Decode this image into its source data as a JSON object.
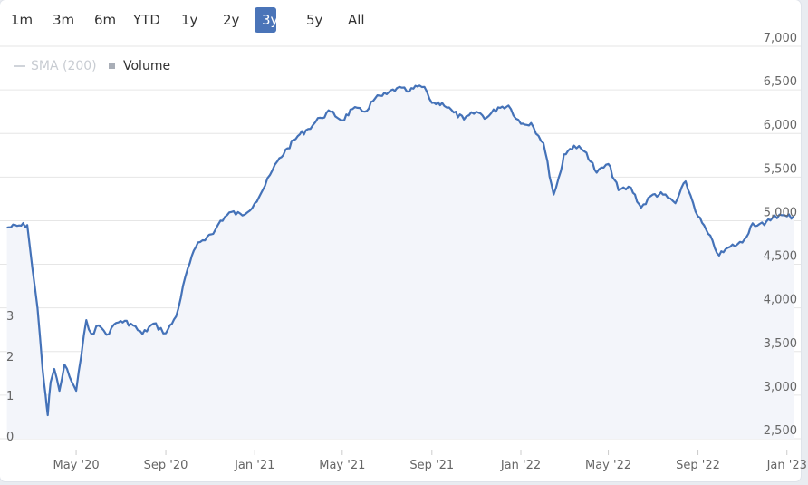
{
  "range_selector": {
    "buttons": [
      "1m",
      "3m",
      "6m",
      "YTD",
      "1y",
      "2y",
      "3y",
      "5y",
      "All"
    ],
    "selected": "3y"
  },
  "legend": {
    "sma_label": "SMA (200)",
    "volume_label": "Volume"
  },
  "colors": {
    "line": "#4472b8",
    "area": "#f3f5fa",
    "grid": "#e6e6e6",
    "active_button": "#4a74b8"
  },
  "chart_data": {
    "type": "area",
    "series": [
      {
        "name": "",
        "x": [
          "2020-01-27",
          "2020-02-10",
          "2020-02-24",
          "2020-03-02",
          "2020-03-09",
          "2020-03-16",
          "2020-03-20",
          "2020-03-23",
          "2020-03-27",
          "2020-04-01",
          "2020-04-08",
          "2020-04-15",
          "2020-04-22",
          "2020-05-01",
          "2020-05-08",
          "2020-05-15",
          "2020-05-22",
          "2020-06-01",
          "2020-06-08",
          "2020-06-15",
          "2020-06-22",
          "2020-07-01",
          "2020-07-15",
          "2020-07-31",
          "2020-08-15",
          "2020-09-01",
          "2020-09-15",
          "2020-10-01",
          "2020-10-15",
          "2020-10-28",
          "2020-11-05",
          "2020-11-15",
          "2020-11-30",
          "2020-12-15",
          "2021-01-01",
          "2021-01-15",
          "2021-02-01",
          "2021-02-15",
          "2021-03-01",
          "2021-03-15",
          "2021-04-01",
          "2021-04-15",
          "2021-05-01",
          "2021-05-15",
          "2021-06-01",
          "2021-06-15",
          "2021-07-01",
          "2021-07-15",
          "2021-08-01",
          "2021-08-15",
          "2021-08-25",
          "2021-09-01",
          "2021-09-15",
          "2021-10-01",
          "2021-10-15",
          "2021-11-01",
          "2021-11-15",
          "2021-12-01",
          "2021-12-15",
          "2022-01-01",
          "2022-01-15",
          "2022-02-01",
          "2022-02-15",
          "2022-02-25",
          "2022-03-01",
          "2022-03-15",
          "2022-04-01",
          "2022-04-15",
          "2022-05-01",
          "2022-05-15",
          "2022-06-01",
          "2022-06-15",
          "2022-07-01",
          "2022-07-15",
          "2022-08-01",
          "2022-08-15",
          "2022-09-01",
          "2022-09-15",
          "2022-09-30",
          "2022-10-15",
          "2022-11-01",
          "2022-11-15",
          "2022-12-01",
          "2022-12-15",
          "2023-01-01",
          "2023-01-10"
        ],
        "y": [
          4920,
          4940,
          4950,
          4450,
          4000,
          3300,
          3000,
          2770,
          3150,
          3300,
          3050,
          3350,
          3210,
          3050,
          3450,
          3860,
          3700,
          3800,
          3740,
          3700,
          3810,
          3850,
          3820,
          3700,
          3820,
          3710,
          3900,
          4450,
          4750,
          4820,
          4850,
          5000,
          5100,
          5060,
          5200,
          5400,
          5680,
          5830,
          5970,
          6050,
          6180,
          6250,
          6150,
          6280,
          6250,
          6400,
          6450,
          6520,
          6480,
          6550,
          6480,
          6350,
          6350,
          6240,
          6160,
          6250,
          6180,
          6300,
          6320,
          6110,
          6120,
          5890,
          5300,
          5570,
          5760,
          5860,
          5780,
          5550,
          5650,
          5350,
          5380,
          5150,
          5300,
          5300,
          5200,
          5450,
          5050,
          4850,
          4600,
          4700,
          4750,
          4970,
          4950,
          5060,
          5050,
          5050
        ]
      }
    ],
    "x_tick_labels": [
      "May '20",
      "Sep '20",
      "Jan '21",
      "May '21",
      "Sep '21",
      "Jan '22",
      "May '22",
      "Sep '22",
      "Jan '23"
    ],
    "x_ticks": [
      "2020-05-01",
      "2020-09-01",
      "2021-01-01",
      "2021-05-01",
      "2021-09-01",
      "2022-01-01",
      "2022-05-01",
      "2022-09-01",
      "2023-01-01"
    ],
    "y_right_tick_labels": [
      "7,000",
      "6,500",
      "6,000",
      "5,500",
      "5,000",
      "4,500",
      "4,000",
      "3,500",
      "3,000",
      "2,500"
    ],
    "y_right_ticks": [
      7000,
      6500,
      6000,
      5500,
      5000,
      4500,
      4000,
      3500,
      3000,
      2500
    ],
    "ylim": [
      2500,
      7000
    ],
    "xlim": [
      "2020-01-25",
      "2023-01-15"
    ],
    "volume_axis_tick_labels": [
      "3",
      "2",
      "1",
      "0"
    ],
    "grid": true
  }
}
